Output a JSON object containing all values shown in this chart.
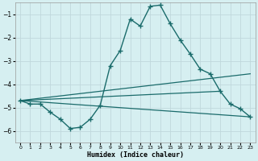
{
  "xlabel": "Humidex (Indice chaleur)",
  "background_color": "#d6eff1",
  "grid_color": "#c0d8dc",
  "line_color": "#1a6b6b",
  "xlim": [
    -0.5,
    23.5
  ],
  "ylim": [
    -6.5,
    -0.5
  ],
  "yticks": [
    -6,
    -5,
    -4,
    -3,
    -2,
    -1
  ],
  "xticks": [
    0,
    1,
    2,
    3,
    4,
    5,
    6,
    7,
    8,
    9,
    10,
    11,
    12,
    13,
    14,
    15,
    16,
    17,
    18,
    19,
    20,
    21,
    22,
    23
  ],
  "main_series": {
    "x": [
      0,
      1,
      2,
      3,
      4,
      5,
      6,
      7,
      8,
      9,
      10,
      11,
      12,
      13,
      14,
      15,
      16,
      17,
      18,
      19,
      20,
      21,
      22,
      23
    ],
    "y": [
      -4.7,
      -4.85,
      -4.85,
      -5.2,
      -5.5,
      -5.9,
      -5.85,
      -5.5,
      -4.9,
      -3.2,
      -2.55,
      -1.2,
      -1.5,
      -0.65,
      -0.6,
      -1.4,
      -2.1,
      -2.7,
      -3.35,
      -3.55,
      -4.3,
      -4.85,
      -5.05,
      -5.4
    ]
  },
  "straight_lines": [
    {
      "x": [
        0,
        23
      ],
      "y": [
        -4.7,
        -3.55
      ]
    },
    {
      "x": [
        0,
        20
      ],
      "y": [
        -4.7,
        -4.3
      ]
    },
    {
      "x": [
        0,
        23
      ],
      "y": [
        -4.7,
        -5.4
      ]
    }
  ]
}
